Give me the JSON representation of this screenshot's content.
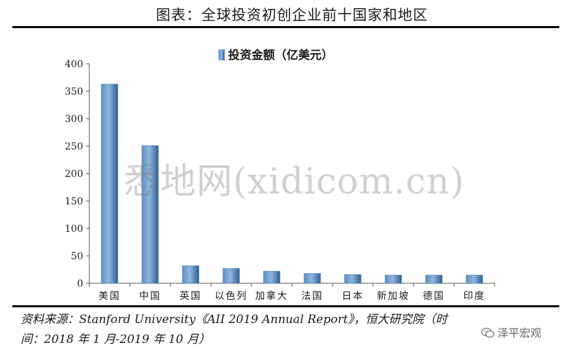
{
  "header": {
    "title": "图表：全球投资初创企业前十国家和地区"
  },
  "chart_data": {
    "type": "bar",
    "legend": {
      "label": "投资金额（亿美元）",
      "position": "top"
    },
    "categories": [
      "美国",
      "中国",
      "英国",
      "以色列",
      "加拿大",
      "法国",
      "日本",
      "新加坡",
      "德国",
      "印度"
    ],
    "series": [
      {
        "name": "投资金额（亿美元）",
        "values": [
          363,
          251,
          32,
          27,
          22,
          18,
          16,
          15,
          15,
          15
        ]
      }
    ],
    "ylim": [
      0,
      400
    ],
    "yticks": [
      0,
      50,
      100,
      150,
      200,
      250,
      300,
      350,
      400
    ],
    "bar_color": "#3f74a8",
    "grid": false
  },
  "source": {
    "line1": "资料来源：Stanford University《AII 2019 Annual Report》，恒大研究院（时",
    "line2": "间：2018 年 1 月-2019 年 10 月）"
  },
  "watermark": {
    "text": "悉地网(xidicom.cn)"
  },
  "badge": {
    "text": "泽平宏观",
    "icon": "wechat-icon"
  }
}
